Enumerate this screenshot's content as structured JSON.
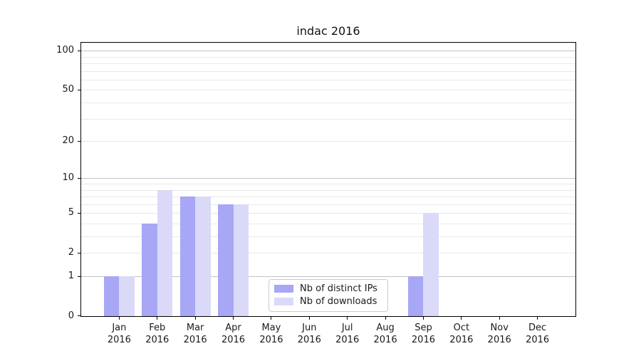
{
  "title": "indac 2016",
  "chart_data": {
    "type": "bar",
    "title": "indac 2016",
    "year_label": "2016",
    "categories": [
      "Jan",
      "Feb",
      "Mar",
      "Apr",
      "May",
      "Jun",
      "Jul",
      "Aug",
      "Sep",
      "Oct",
      "Nov",
      "Dec"
    ],
    "series": [
      {
        "name": "Nb of distinct IPs",
        "color": "#a7a7f5",
        "values": [
          1,
          4,
          7,
          6,
          0,
          0,
          0,
          0,
          1,
          0,
          0,
          0
        ]
      },
      {
        "name": "Nb of downloads",
        "color": "#dadaf8",
        "values": [
          1,
          8,
          7,
          6,
          0,
          0,
          0,
          0,
          5,
          0,
          0,
          0
        ]
      }
    ],
    "yscale": "log1p",
    "ylim": [
      0,
      115
    ],
    "xlabel": "",
    "ylabel": "",
    "grid": true,
    "y_tick_values": [
      0,
      1,
      2,
      5,
      10,
      20,
      50,
      100
    ],
    "y_major_gridlines": [
      1,
      10,
      100
    ],
    "y_minor_gridlines": [
      2,
      3,
      4,
      5,
      6,
      7,
      8,
      9,
      20,
      30,
      40,
      50,
      60,
      70,
      80,
      90
    ],
    "legend_position": "lower center"
  },
  "colors": {
    "bar_distinct_ips": "#a7a7f5",
    "bar_downloads": "#dadaf8",
    "major_grid": "#c2c2c2",
    "minor_grid": "#e9e9e9",
    "axis": "#000000",
    "text": "#1a1a1a",
    "legend_border": "#cccccc",
    "background": "#ffffff"
  }
}
